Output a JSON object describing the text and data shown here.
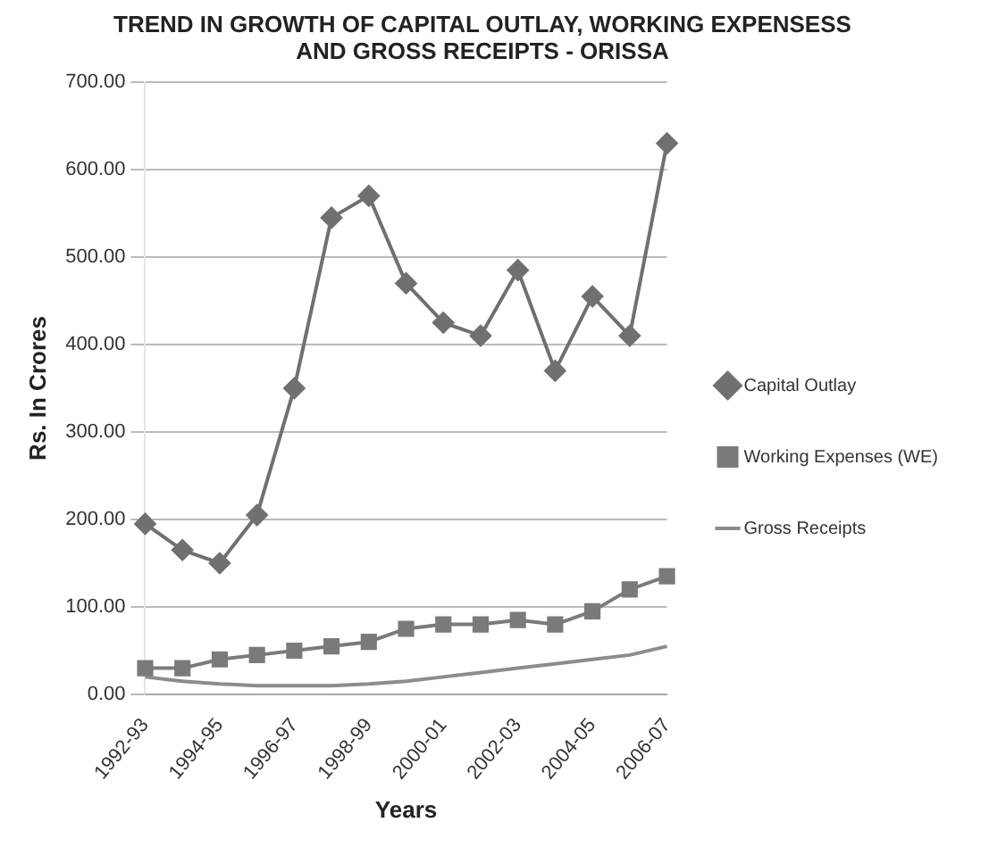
{
  "chart_data": {
    "type": "line",
    "title": "TREND IN GROWTH OF CAPITAL OUTLAY, WORKING EXPENSESS AND GROSS RECEIPTS - ORISSA",
    "xlabel": "Years",
    "ylabel": "Rs. In Crores",
    "categories": [
      "1992-93",
      null,
      "1994-95",
      null,
      "1996-97",
      null,
      "1998-99",
      null,
      "2000-01",
      null,
      "2002-03",
      null,
      "2004-05",
      null,
      "2006-07"
    ],
    "series": [
      {
        "name": "Capital Outlay",
        "color": "#707070",
        "marker": "diamond",
        "values": [
          195,
          165,
          150,
          205,
          350,
          545,
          570,
          470,
          425,
          410,
          485,
          370,
          455,
          410,
          630
        ]
      },
      {
        "name": "Working Expenses (WE)",
        "color": "#7a7a7a",
        "marker": "square",
        "values": [
          30,
          30,
          40,
          45,
          50,
          55,
          60,
          75,
          80,
          80,
          85,
          80,
          95,
          120,
          135
        ]
      },
      {
        "name": "Gross Receipts",
        "color": "#8c8c8c",
        "marker": "none",
        "values": [
          20,
          15,
          12,
          10,
          10,
          10,
          12,
          15,
          20,
          25,
          30,
          35,
          40,
          45,
          55
        ]
      }
    ],
    "ylim": [
      0,
      700
    ],
    "yticks": [
      {
        "value": 0,
        "label": "0.00"
      },
      {
        "value": 100,
        "label": "100.00"
      },
      {
        "value": 200,
        "label": "200.00"
      },
      {
        "value": 300,
        "label": "300.00"
      },
      {
        "value": 400,
        "label": "400.00"
      },
      {
        "value": 500,
        "label": "500.00"
      },
      {
        "value": 600,
        "label": "600.00"
      },
      {
        "value": 700,
        "label": "700.00"
      }
    ],
    "grid": "y",
    "legend": "right"
  }
}
